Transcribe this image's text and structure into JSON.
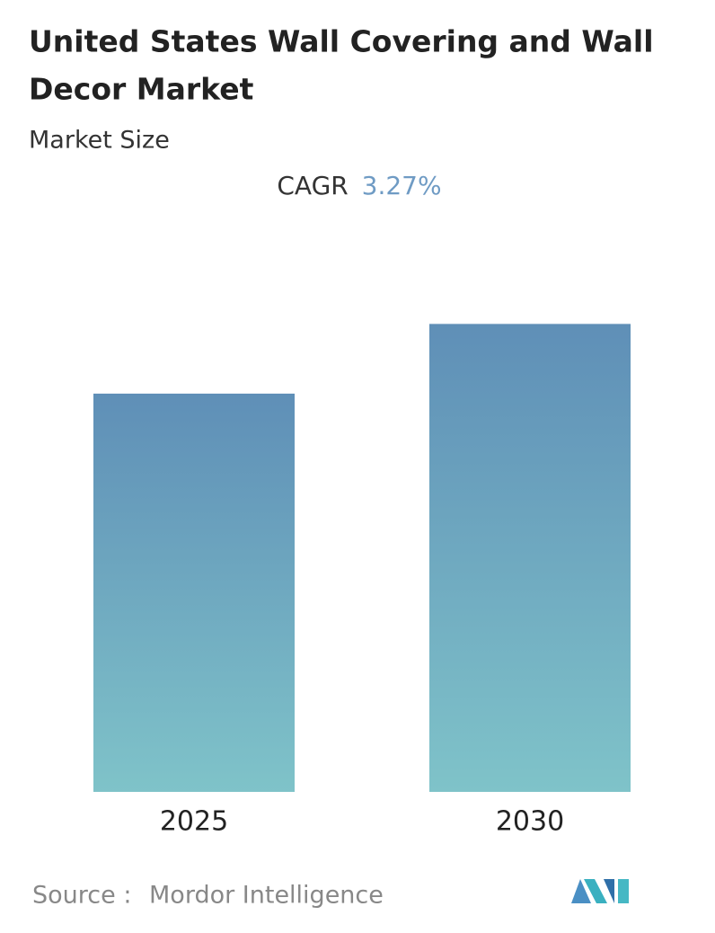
{
  "chart_data": {
    "type": "bar",
    "title": "United States Wall Covering and Wall Decor Market",
    "subtitle": "Market Size",
    "cagr_label": "CAGR",
    "cagr_value": "3.27%",
    "categories": [
      "2025",
      "2030"
    ],
    "values": [
      100,
      117.5
    ],
    "ylim": [
      0,
      130
    ],
    "gradient": [
      "#5f8fb7",
      "#7fc3c9"
    ],
    "source_label": "Source :",
    "source": "Mordor Intelligence"
  }
}
